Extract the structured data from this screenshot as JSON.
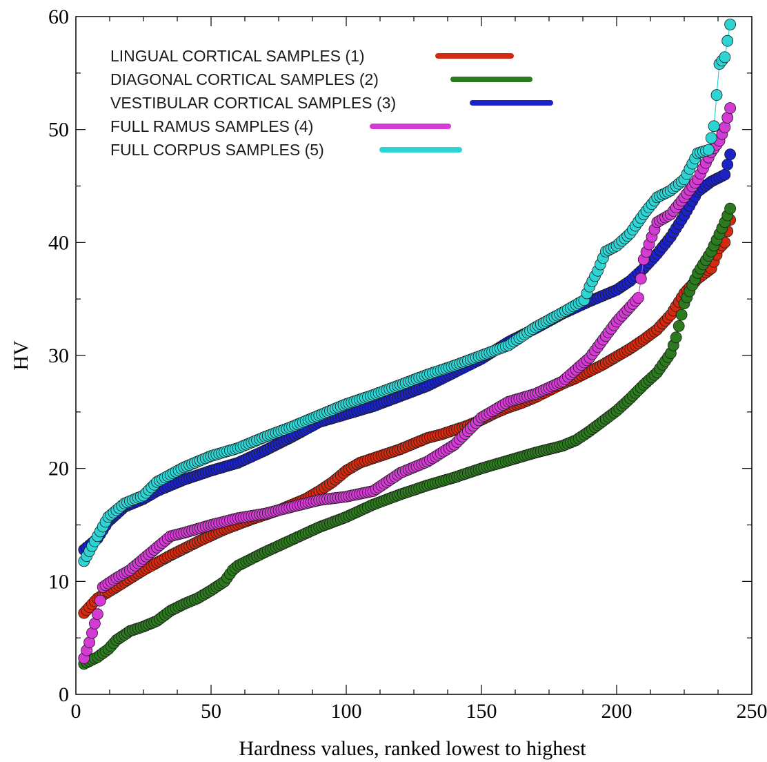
{
  "chart_data": {
    "type": "scatter",
    "xlabel": "Hardness values, ranked lowest to highest",
    "ylabel": "HV",
    "xlim": [
      0,
      250
    ],
    "ylim": [
      0,
      60
    ],
    "x_ticks": [
      0,
      50,
      100,
      150,
      200,
      250
    ],
    "y_ticks": [
      0,
      10,
      20,
      30,
      40,
      50,
      60
    ],
    "grid": false,
    "legend_position": "top-left",
    "series": [
      {
        "name": "LINGUAL CORTICAL SAMPLES (1)",
        "color": "#d42a10",
        "x": [
          3,
          8,
          15,
          25,
          35,
          45,
          55,
          65,
          75,
          85,
          90,
          95,
          100,
          105,
          110,
          115,
          120,
          125,
          130,
          135,
          140,
          145,
          150,
          155,
          160,
          165,
          170,
          175,
          180,
          185,
          190,
          195,
          200,
          205,
          210,
          215,
          220,
          225,
          230,
          235,
          238,
          240,
          242
        ],
        "values": [
          7.2,
          8.5,
          9.5,
          11,
          12.3,
          13.5,
          14.6,
          15.5,
          16.3,
          17.3,
          18,
          18.8,
          19.8,
          20.5,
          20.9,
          21.3,
          21.7,
          22.2,
          22.7,
          23,
          23.4,
          23.8,
          24.3,
          24.9,
          25.4,
          25.8,
          26.3,
          26.9,
          27.5,
          28,
          28.6,
          29.2,
          29.9,
          30.6,
          31.4,
          32.3,
          33.6,
          35.5,
          36.8,
          37.7,
          39.5,
          40,
          42
        ]
      },
      {
        "name": "DIAGONAL CORTICAL SAMPLES (2)",
        "color": "#2c7a1e",
        "x": [
          3,
          8,
          12,
          15,
          20,
          25,
          30,
          35,
          40,
          45,
          50,
          55,
          58,
          60,
          65,
          70,
          80,
          90,
          100,
          110,
          120,
          130,
          140,
          150,
          160,
          170,
          180,
          185,
          190,
          195,
          200,
          205,
          210,
          215,
          220,
          222,
          225,
          230,
          235,
          240,
          242
        ],
        "values": [
          2.7,
          3.3,
          4,
          4.8,
          5.6,
          6,
          6.5,
          7.4,
          8,
          8.5,
          9.2,
          10,
          11,
          11.4,
          12,
          12.6,
          13.7,
          14.8,
          15.7,
          16.8,
          17.7,
          18.5,
          19.2,
          20,
          20.7,
          21.4,
          22,
          22.5,
          23.3,
          24.2,
          25.1,
          26.2,
          27.4,
          28.5,
          30.2,
          31.6,
          34.6,
          37.3,
          39.2,
          41.8,
          43
        ]
      },
      {
        "name": "VESTIBULAR CORTICAL SAMPLES (3)",
        "color": "#1a22c8",
        "x": [
          3,
          8,
          12,
          18,
          25,
          30,
          40,
          50,
          60,
          70,
          80,
          90,
          100,
          110,
          120,
          130,
          140,
          150,
          160,
          170,
          180,
          190,
          200,
          205,
          210,
          215,
          220,
          225,
          230,
          235,
          240,
          242
        ],
        "values": [
          12.8,
          13.8,
          15.3,
          16.6,
          17.3,
          18,
          19,
          19.8,
          20.5,
          21.6,
          22.8,
          24.1,
          24.8,
          25.5,
          26.4,
          27.3,
          28.5,
          29.7,
          31.2,
          32.4,
          33.7,
          34.8,
          35.8,
          36.6,
          37.7,
          39,
          40.5,
          42.4,
          44.5,
          45.4,
          46,
          47.8
        ]
      },
      {
        "name": "FULL RAMUS SAMPLES (4)",
        "color": "#d43ad4",
        "x": [
          3,
          5,
          8,
          10,
          15,
          20,
          25,
          30,
          35,
          40,
          50,
          60,
          70,
          80,
          90,
          100,
          110,
          115,
          120,
          130,
          140,
          150,
          160,
          170,
          180,
          190,
          200,
          205,
          208,
          210,
          213,
          215,
          220,
          225,
          230,
          235,
          238,
          240,
          242
        ],
        "values": [
          3.2,
          4.6,
          7.1,
          9.5,
          10.3,
          11,
          12,
          13,
          14,
          14.3,
          15,
          15.6,
          16,
          16.6,
          17.2,
          17.5,
          18,
          18.8,
          19.6,
          20.6,
          22.1,
          24.5,
          25.9,
          26.6,
          27.7,
          29.8,
          33,
          34.3,
          35.1,
          38.5,
          40.5,
          41.8,
          42.5,
          44,
          45.6,
          48,
          49,
          50.2,
          51.9
        ]
      },
      {
        "name": "FULL CORPUS SAMPLES (5)",
        "color": "#2ed4d4",
        "x": [
          3,
          8,
          12,
          18,
          25,
          30,
          40,
          50,
          60,
          70,
          80,
          90,
          100,
          110,
          120,
          130,
          140,
          150,
          160,
          170,
          180,
          188,
          190,
          193,
          196,
          200,
          205,
          210,
          215,
          220,
          225,
          230,
          234,
          236,
          238,
          240,
          242
        ],
        "values": [
          11.8,
          14,
          15.7,
          16.9,
          17.6,
          18.8,
          20.1,
          21.1,
          21.8,
          22.8,
          23.7,
          24.7,
          25.7,
          26.5,
          27.4,
          28.3,
          29.1,
          30,
          30.9,
          32.5,
          33.8,
          34.9,
          36.1,
          37.5,
          39.2,
          39.7,
          40.8,
          42.5,
          44,
          44.6,
          45.6,
          47.9,
          48.2,
          50.3,
          55.8,
          56.4,
          59.3
        ]
      }
    ]
  }
}
